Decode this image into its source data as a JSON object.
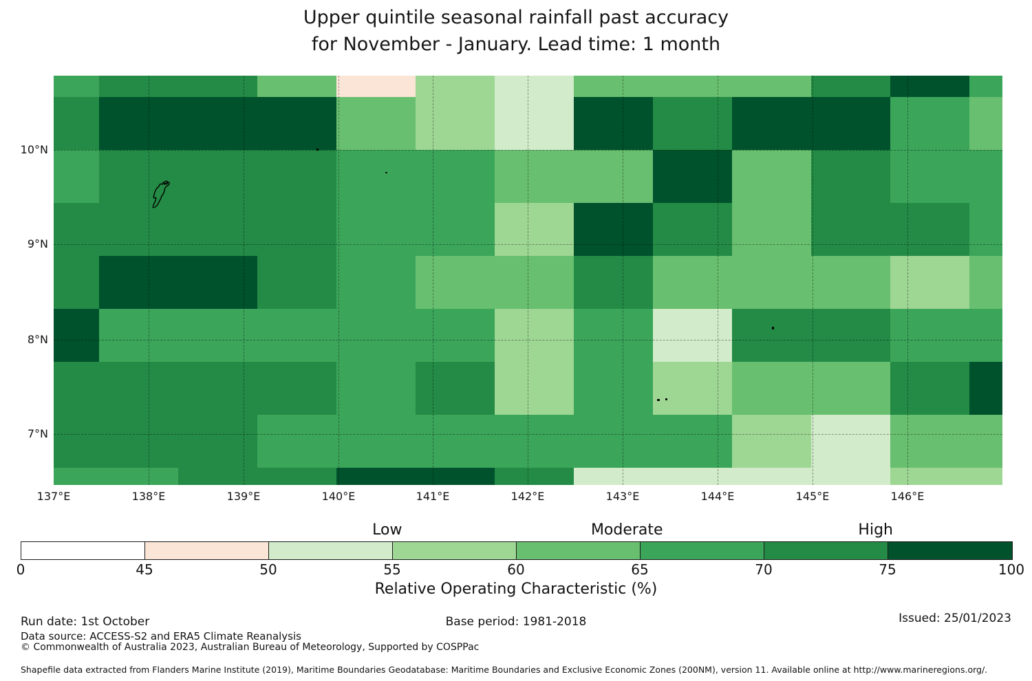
{
  "title": {
    "line1": "Upper quintile seasonal rainfall past accuracy",
    "line2": "for November - January. Lead time: 1 month"
  },
  "chart_data": {
    "type": "heatmap",
    "title": "Upper quintile seasonal rainfall past accuracy for November - January. Lead time: 1 month",
    "value_name": "Relative Operating Characteristic (%)",
    "x_tick_labels": [
      "137°E",
      "138°E",
      "139°E",
      "140°E",
      "141°E",
      "142°E",
      "143°E",
      "144°E",
      "145°E",
      "146°E"
    ],
    "y_tick_labels": [
      "10°N",
      "9°N",
      "8°N",
      "7°N"
    ],
    "lon_range": [
      137.0,
      147.0
    ],
    "lat_range": [
      6.45,
      10.79
    ],
    "grid_on": true,
    "legend_position": "bottom",
    "palette": {
      "A": {
        "range": "0-45",
        "color": "#ffffff"
      },
      "B": {
        "range": "45-50",
        "color": "#fbe5d7"
      },
      "C": {
        "range": "50-55",
        "color": "#d2ebca"
      },
      "D": {
        "range": "55-60",
        "color": "#9ed694"
      },
      "E": {
        "range": "60-65",
        "color": "#68bf6f"
      },
      "F": {
        "range": "65-70",
        "color": "#3ba55a"
      },
      "G": {
        "range": "70-75",
        "color": "#238b45"
      },
      "H": {
        "range": "75-100",
        "color": "#00522c"
      }
    },
    "rows_lat_center": [
      10.7,
      10.3,
      9.7,
      9.2,
      8.6,
      8.0,
      7.5,
      6.9,
      6.5
    ],
    "cols_lon_center": [
      137.2,
      137.9,
      138.7,
      139.6,
      140.4,
      141.2,
      142.0,
      142.9,
      143.7,
      144.5,
      145.4,
      146.2,
      146.8
    ],
    "grid_codes": [
      [
        "F",
        "G",
        "G",
        "E",
        "B",
        "D",
        "C",
        "E",
        "E",
        "E",
        "G",
        "H",
        "F"
      ],
      [
        "G",
        "H",
        "H",
        "H",
        "E",
        "D",
        "C",
        "H",
        "G",
        "H",
        "H",
        "F",
        "E"
      ],
      [
        "F",
        "G",
        "G",
        "G",
        "F",
        "F",
        "E",
        "E",
        "H",
        "E",
        "G",
        "F",
        "F"
      ],
      [
        "G",
        "G",
        "G",
        "G",
        "F",
        "F",
        "D",
        "H",
        "G",
        "E",
        "G",
        "G",
        "F"
      ],
      [
        "G",
        "H",
        "H",
        "G",
        "F",
        "E",
        "E",
        "G",
        "E",
        "E",
        "E",
        "D",
        "E"
      ],
      [
        "H",
        "F",
        "F",
        "F",
        "F",
        "F",
        "D",
        "F",
        "C",
        "G",
        "G",
        "F",
        "F"
      ],
      [
        "G",
        "G",
        "G",
        "G",
        "F",
        "G",
        "D",
        "F",
        "D",
        "E",
        "E",
        "G",
        "H"
      ],
      [
        "G",
        "G",
        "G",
        "F",
        "F",
        "F",
        "F",
        "F",
        "F",
        "D",
        "C",
        "E",
        "E"
      ],
      [
        "F",
        "F",
        "G",
        "G",
        "H",
        "H",
        "G",
        "C",
        "C",
        "C",
        "C",
        "D",
        "D"
      ]
    ]
  },
  "colorbar": {
    "segment_codes": [
      "A",
      "B",
      "C",
      "D",
      "E",
      "F",
      "G",
      "H"
    ],
    "ticks": [
      "0",
      "45",
      "50",
      "55",
      "60",
      "65",
      "70",
      "75",
      "100"
    ],
    "zone_labels": [
      {
        "text": "Low",
        "pct": 37.0
      },
      {
        "text": "Moderate",
        "pct": 61.2
      },
      {
        "text": "High",
        "pct": 86.3
      }
    ],
    "axis_label": "Relative Operating Characteristic (%)"
  },
  "footer": {
    "run_date": "Run date: 1st October",
    "base_period": "Base period: 1981-2018",
    "issued": "Issued: 25/01/2023",
    "data_source": "Data source: ACCESS-S2 and ERA5 Climate Reanalysis",
    "copyright": "© Commonwealth of Australia 2023, Australian Bureau of Meteorology, Supported by COSPPac",
    "shapefile_note": "Shapefile data extracted from Flanders Marine Institute (2019), Maritime Boundaries Geodatabase: Maritime Boundaries and Exclusive Economic Zones (200NM), version 11. Available online at http://www.marineregions.org/."
  }
}
